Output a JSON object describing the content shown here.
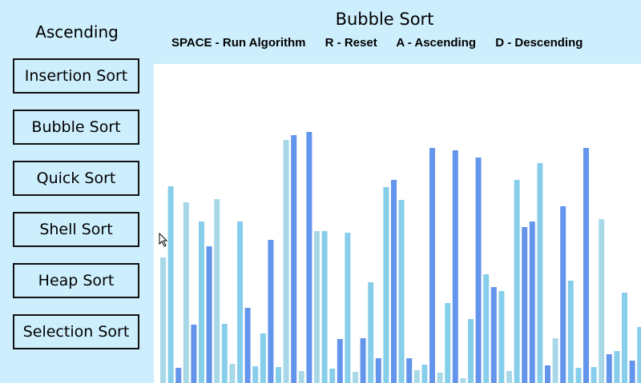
{
  "sidebar": {
    "order_label": "Ascending",
    "buttons": [
      {
        "label": "Insertion Sort"
      },
      {
        "label": "Bubble Sort"
      },
      {
        "label": "Quick Sort"
      },
      {
        "label": "Shell Sort"
      },
      {
        "label": "Heap Sort"
      },
      {
        "label": "Selection Sort"
      }
    ]
  },
  "header": {
    "title": "Bubble Sort",
    "controls": {
      "run": "SPACE - Run Algorithm",
      "reset": "R - Reset",
      "ascending": "A - Ascending",
      "descending": "D - Descending"
    }
  },
  "colors": {
    "background": "#cdeefc",
    "canvas": "#ffffff",
    "bar_light": "#a8d8e8",
    "bar_sky": "#87ceeb",
    "bar_blue": "#6495ed"
  },
  "bars": {
    "max_value": 399,
    "values": [
      157,
      246,
      19,
      226,
      73,
      202,
      171,
      230,
      74,
      24,
      202,
      94,
      21,
      62,
      179,
      20,
      304,
      310,
      15,
      314,
      190,
      190,
      18,
      55,
      188,
      14,
      56,
      126,
      31,
      245,
      254,
      229,
      31,
      16,
      23,
      294,
      13,
      100,
      291,
      6,
      80,
      282,
      136,
      120,
      115,
      15,
      254,
      195,
      202,
      275,
      22,
      56,
      221,
      128,
      19,
      294,
      20,
      205,
      36,
      40,
      113,
      28,
      70,
      8,
      35,
      282,
      240
    ],
    "tones": [
      "light",
      "sky",
      "blue",
      "light",
      "blue",
      "sky",
      "blue",
      "light",
      "sky",
      "light",
      "sky",
      "blue",
      "sky",
      "sky",
      "blue",
      "sky",
      "light",
      "blue",
      "light",
      "blue",
      "light",
      "sky",
      "sky",
      "blue",
      "sky",
      "light",
      "blue",
      "sky",
      "blue",
      "sky",
      "blue",
      "sky",
      "blue",
      "light",
      "sky",
      "blue",
      "light",
      "sky",
      "blue",
      "light",
      "sky",
      "blue",
      "sky",
      "blue",
      "sky",
      "light",
      "sky",
      "blue",
      "blue",
      "sky",
      "blue",
      "light",
      "blue",
      "sky",
      "sky",
      "blue",
      "sky",
      "light",
      "blue",
      "sky",
      "sky",
      "blue",
      "sky",
      "light",
      "blue",
      "sky",
      "blue"
    ]
  }
}
